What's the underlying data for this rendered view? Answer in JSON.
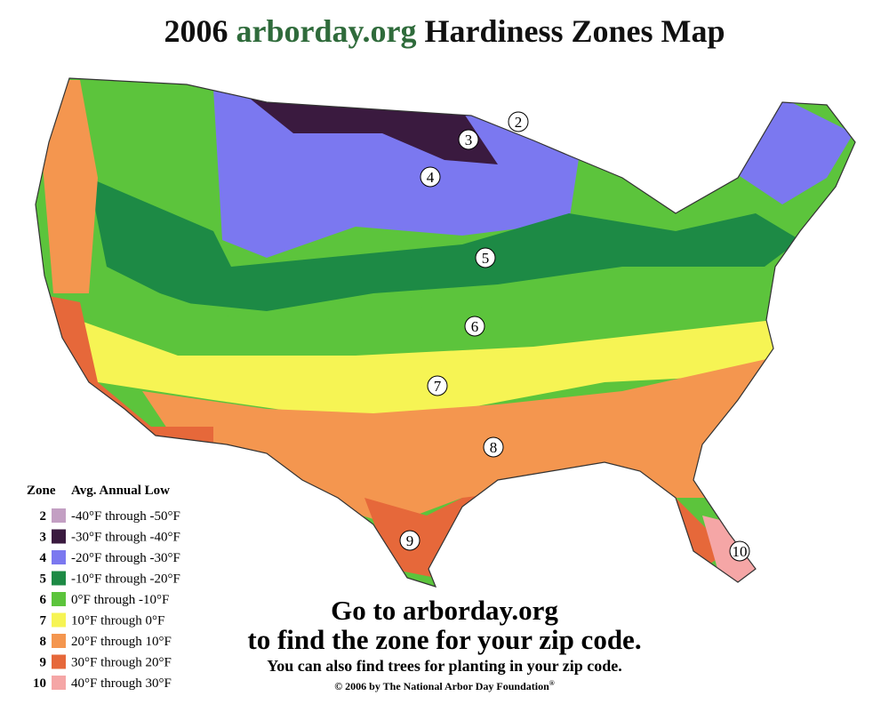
{
  "title": {
    "year": "2006",
    "site": "arborday.org",
    "rest": "Hardiness Zones Map"
  },
  "legend": {
    "zone_header": "Zone",
    "range_header": "Avg. Annual Low",
    "rows": [
      {
        "zone": "2",
        "range": "-40°F through -50°F",
        "color": "#c39fc3"
      },
      {
        "zone": "3",
        "range": "-30°F through -40°F",
        "color": "#3a1a3f"
      },
      {
        "zone": "4",
        "range": "-20°F through -30°F",
        "color": "#7b78f0"
      },
      {
        "zone": "5",
        "range": "-10°F through -20°F",
        "color": "#1d8a45"
      },
      {
        "zone": "6",
        "range": "0°F through -10°F",
        "color": "#5cc43c"
      },
      {
        "zone": "7",
        "range": "10°F through 0°F",
        "color": "#f6f454"
      },
      {
        "zone": "8",
        "range": "20°F through 10°F",
        "color": "#f4964f"
      },
      {
        "zone": "9",
        "range": "30°F through 20°F",
        "color": "#e6683a"
      },
      {
        "zone": "10",
        "range": "40°F through 30°F",
        "color": "#f5a6a6"
      }
    ]
  },
  "map_labels": [
    "2",
    "3",
    "4",
    "5",
    "6",
    "7",
    "8",
    "9",
    "10"
  ],
  "footer": {
    "line1": "Go to arborday.org",
    "line2": "to find the zone for your zip code.",
    "line3": "You can also find trees for planting in your zip code.",
    "copyright": "© 2006 by The National Arbor Day Foundation",
    "registered": "®"
  }
}
